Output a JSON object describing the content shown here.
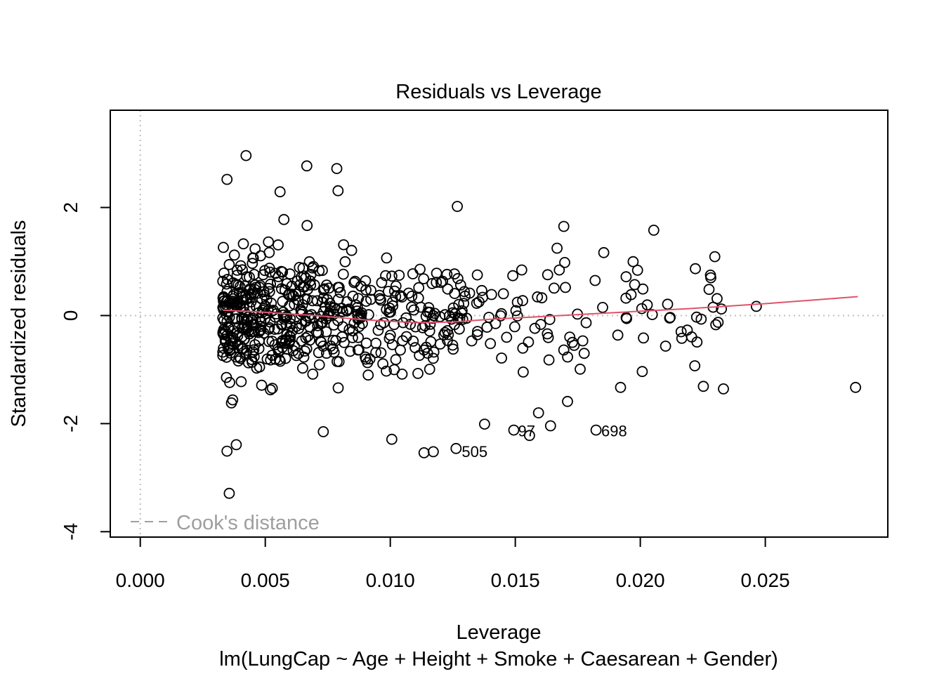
{
  "chart_data": {
    "type": "scatter",
    "title": "Residuals vs Leverage",
    "xlabel": "Leverage",
    "ylabel": "Standardized residuals",
    "subtitle": "lm(LungCap ~ Age + Height + Smoke + Caesarean + Gender)",
    "xlim": [
      -0.0012,
      0.0299
    ],
    "ylim": [
      -4.1,
      3.8
    ],
    "x_ticks": [
      0.0,
      0.005,
      0.01,
      0.015,
      0.02,
      0.025
    ],
    "x_tick_labels": [
      "0.000",
      "0.005",
      "0.010",
      "0.015",
      "0.020",
      "0.025"
    ],
    "y_ticks": [
      -4,
      -2,
      0,
      2
    ],
    "y_tick_labels": [
      "-4",
      "-2",
      "0",
      "2"
    ],
    "reference_lines": {
      "h": 0,
      "v": 0,
      "style": "dotted"
    },
    "legend": {
      "label": "Cook's distance",
      "position": "bottom-left",
      "line_style": "dashed"
    },
    "annotations": [
      {
        "label": "505",
        "x": 0.01269,
        "y": -2.5
      },
      {
        "label": "97",
        "x": 0.01494,
        "y": -2.12
      },
      {
        "label": "698",
        "x": 0.01827,
        "y": -2.12
      }
    ],
    "smooth_line": {
      "color": "#DF536B",
      "x": [
        0.0033,
        0.005,
        0.007,
        0.009,
        0.011,
        0.0125,
        0.014,
        0.016,
        0.018,
        0.02,
        0.022,
        0.025,
        0.0287
      ],
      "y": [
        0.1,
        0.06,
        0.0,
        -0.08,
        -0.13,
        -0.12,
        -0.07,
        -0.02,
        0.03,
        0.08,
        0.13,
        0.22,
        0.35
      ]
    },
    "highlighted_points": [
      {
        "x": 0.00423,
        "y": 2.96
      },
      {
        "x": 0.00666,
        "y": 2.77
      },
      {
        "x": 0.00786,
        "y": 2.72
      },
      {
        "x": 0.00347,
        "y": 2.52
      },
      {
        "x": 0.00791,
        "y": 2.31
      },
      {
        "x": 0.00559,
        "y": 2.29
      },
      {
        "x": 0.01268,
        "y": 2.02
      },
      {
        "x": 0.01694,
        "y": 1.65
      },
      {
        "x": 0.02054,
        "y": 1.58
      },
      {
        "x": 0.02298,
        "y": 1.09
      },
      {
        "x": 0.02282,
        "y": 0.7
      },
      {
        "x": 0.02464,
        "y": 0.17
      },
      {
        "x": 0.02218,
        "y": -0.93
      },
      {
        "x": 0.02861,
        "y": -1.33
      },
      {
        "x": 0.01921,
        "y": -1.33
      },
      {
        "x": 0.01709,
        "y": -1.59
      },
      {
        "x": 0.01593,
        "y": -1.8
      },
      {
        "x": 0.01641,
        "y": -2.04
      },
      {
        "x": 0.01557,
        "y": -2.22
      },
      {
        "x": 0.01823,
        "y": -2.12
      },
      {
        "x": 0.01494,
        "y": -2.12
      },
      {
        "x": 0.01263,
        "y": -2.46
      },
      {
        "x": 0.01135,
        "y": -2.54
      },
      {
        "x": 0.01172,
        "y": -2.52
      },
      {
        "x": 0.01006,
        "y": -2.29
      },
      {
        "x": 0.00347,
        "y": -2.51
      },
      {
        "x": 0.00384,
        "y": -2.39
      },
      {
        "x": 0.00356,
        "y": -3.29
      },
      {
        "x": 0.00732,
        "y": -2.15
      },
      {
        "x": 0.01377,
        "y": -2.01
      }
    ],
    "cloud": {
      "n_points": 620,
      "description": "Dense cluster of remaining observations",
      "x_range": [
        0.0033,
        0.0235
      ],
      "y_range": [
        -2.3,
        2.1
      ]
    },
    "colors": {
      "points": "#000000",
      "smooth": "#DF536B",
      "reference": "#bebebe",
      "legend": "#9e9e9e"
    }
  }
}
